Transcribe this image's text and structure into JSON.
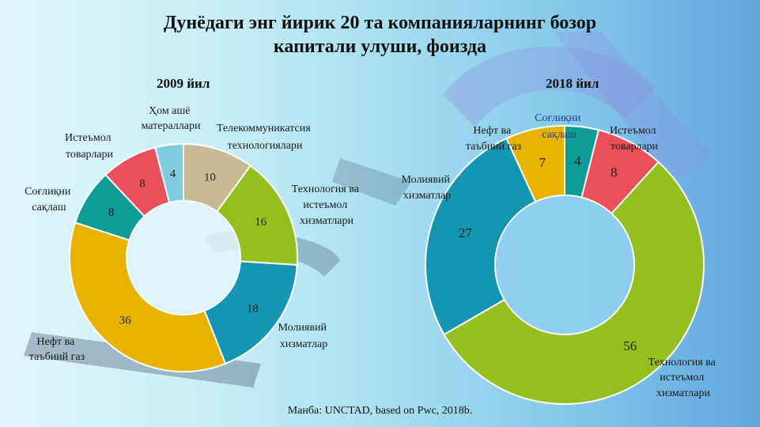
{
  "title_line1": "Дунёдаги энг йирик 20 та компанияларнинг бозор",
  "title_line2": "капитали улуши, фоизда",
  "source": "Манба: UNCTAD, based on Pwc, 2018b.",
  "chart_data": [
    {
      "type": "pie",
      "title": "2009 йил",
      "categories": [
        "Телекоммуникатсия технологиялари",
        "Технология ва истеъмол хизматлари",
        "Молиявий хизматлар",
        "Нефт ва таъбиий газ",
        "Соғлиқни сақлаш",
        "Истеъмол товарлари",
        "Ҳом ашё матераллари"
      ],
      "values": [
        10,
        16,
        18,
        36,
        8,
        8,
        4
      ],
      "colors": [
        "#c9b994",
        "#93c01f",
        "#1496b3",
        "#e8b200",
        "#0e9c95",
        "#e9505a",
        "#80cde0"
      ]
    },
    {
      "type": "pie",
      "title": "2018 йил",
      "categories": [
        "Соғлиқни сақлаш",
        "Истеъмол товарлари",
        "Технология ва истеъмол хизматлари",
        "Молиявий хизматлар",
        "Нефт ва таъбиий газ"
      ],
      "values": [
        4,
        8,
        56,
        27,
        7
      ],
      "colors": [
        "#0e9c95",
        "#e9505a",
        "#93c01f",
        "#1496b3",
        "#e8b200"
      ]
    }
  ]
}
